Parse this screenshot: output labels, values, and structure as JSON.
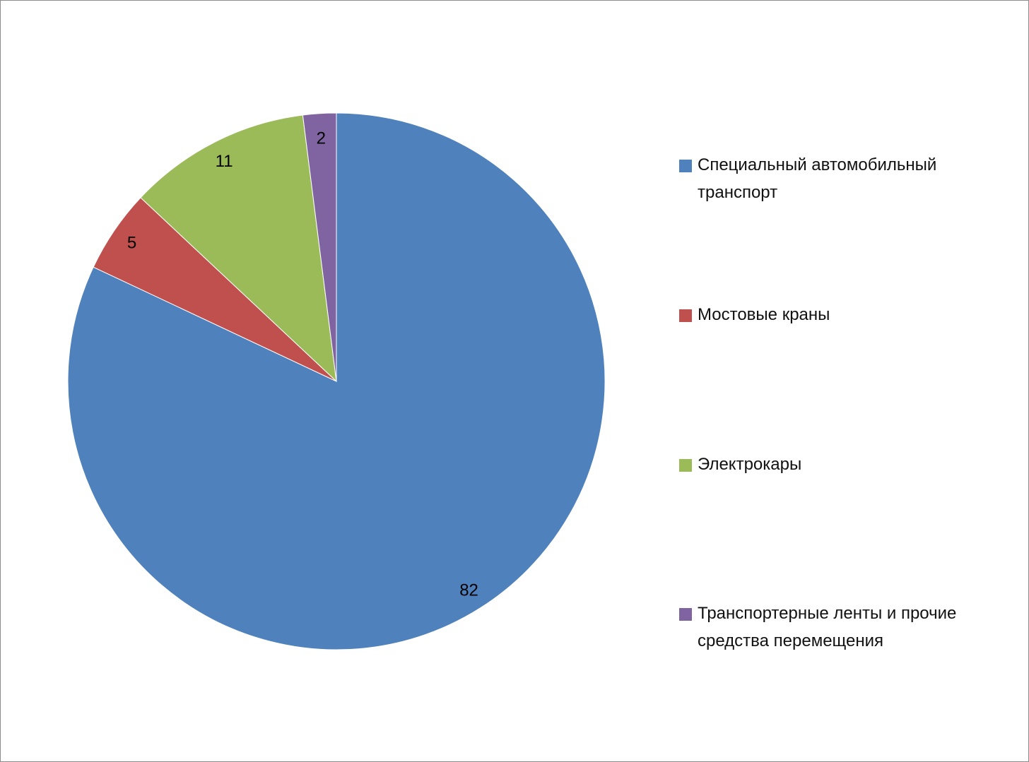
{
  "chart_data": {
    "type": "pie",
    "title": "",
    "categories": [
      "Специальный автомобильный транспорт",
      "Мостовые краны",
      "Электрокары",
      "Транспортерные ленты и прочие средства перемещения"
    ],
    "values": [
      82,
      5,
      11,
      2
    ],
    "data_labels": [
      "82",
      "5",
      "11",
      "2"
    ],
    "colors": [
      "#4F81BD",
      "#C0504D",
      "#9BBB59",
      "#8064A2"
    ],
    "start_angle": "top, clockwise",
    "legend_position": "right"
  }
}
